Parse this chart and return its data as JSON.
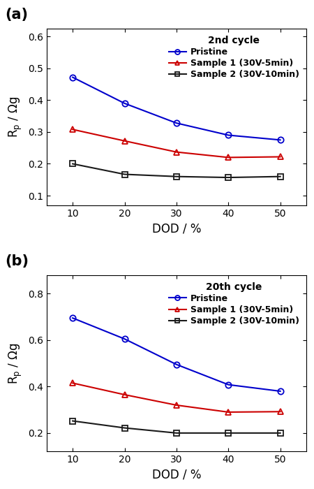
{
  "dod": [
    10,
    20,
    30,
    40,
    50
  ],
  "panel_a": {
    "title": "2nd cycle",
    "pristine": [
      0.472,
      0.39,
      0.328,
      0.29,
      0.275
    ],
    "sample1": [
      0.308,
      0.272,
      0.237,
      0.22,
      0.222
    ],
    "sample2": [
      0.2,
      0.167,
      0.16,
      0.157,
      0.16
    ],
    "ylim": [
      0.07,
      0.625
    ],
    "yticks": [
      0.1,
      0.2,
      0.3,
      0.4,
      0.5,
      0.6
    ]
  },
  "panel_b": {
    "title": "20th cycle",
    "pristine": [
      0.695,
      0.605,
      0.495,
      0.408,
      0.38
    ],
    "sample1": [
      0.415,
      0.365,
      0.32,
      0.29,
      0.292
    ],
    "sample2": [
      0.252,
      0.222,
      0.2,
      0.2,
      0.2
    ],
    "ylim": [
      0.12,
      0.88
    ],
    "yticks": [
      0.2,
      0.4,
      0.6,
      0.8
    ]
  },
  "colors": {
    "pristine": "#0000cc",
    "sample1": "#cc0000",
    "sample2": "#1a1a1a"
  },
  "legend_labels": [
    "Pristine",
    "Sample 1 (30V-5min)",
    "Sample 2 (30V-10min)"
  ],
  "xlabel": "DOD / %",
  "ylabel": "R$_\\mathregular{p}$ / Ωg",
  "panel_labels": [
    "(a)",
    "(b)"
  ],
  "fig_width": 4.5,
  "fig_height": 7.0,
  "dpi": 100
}
